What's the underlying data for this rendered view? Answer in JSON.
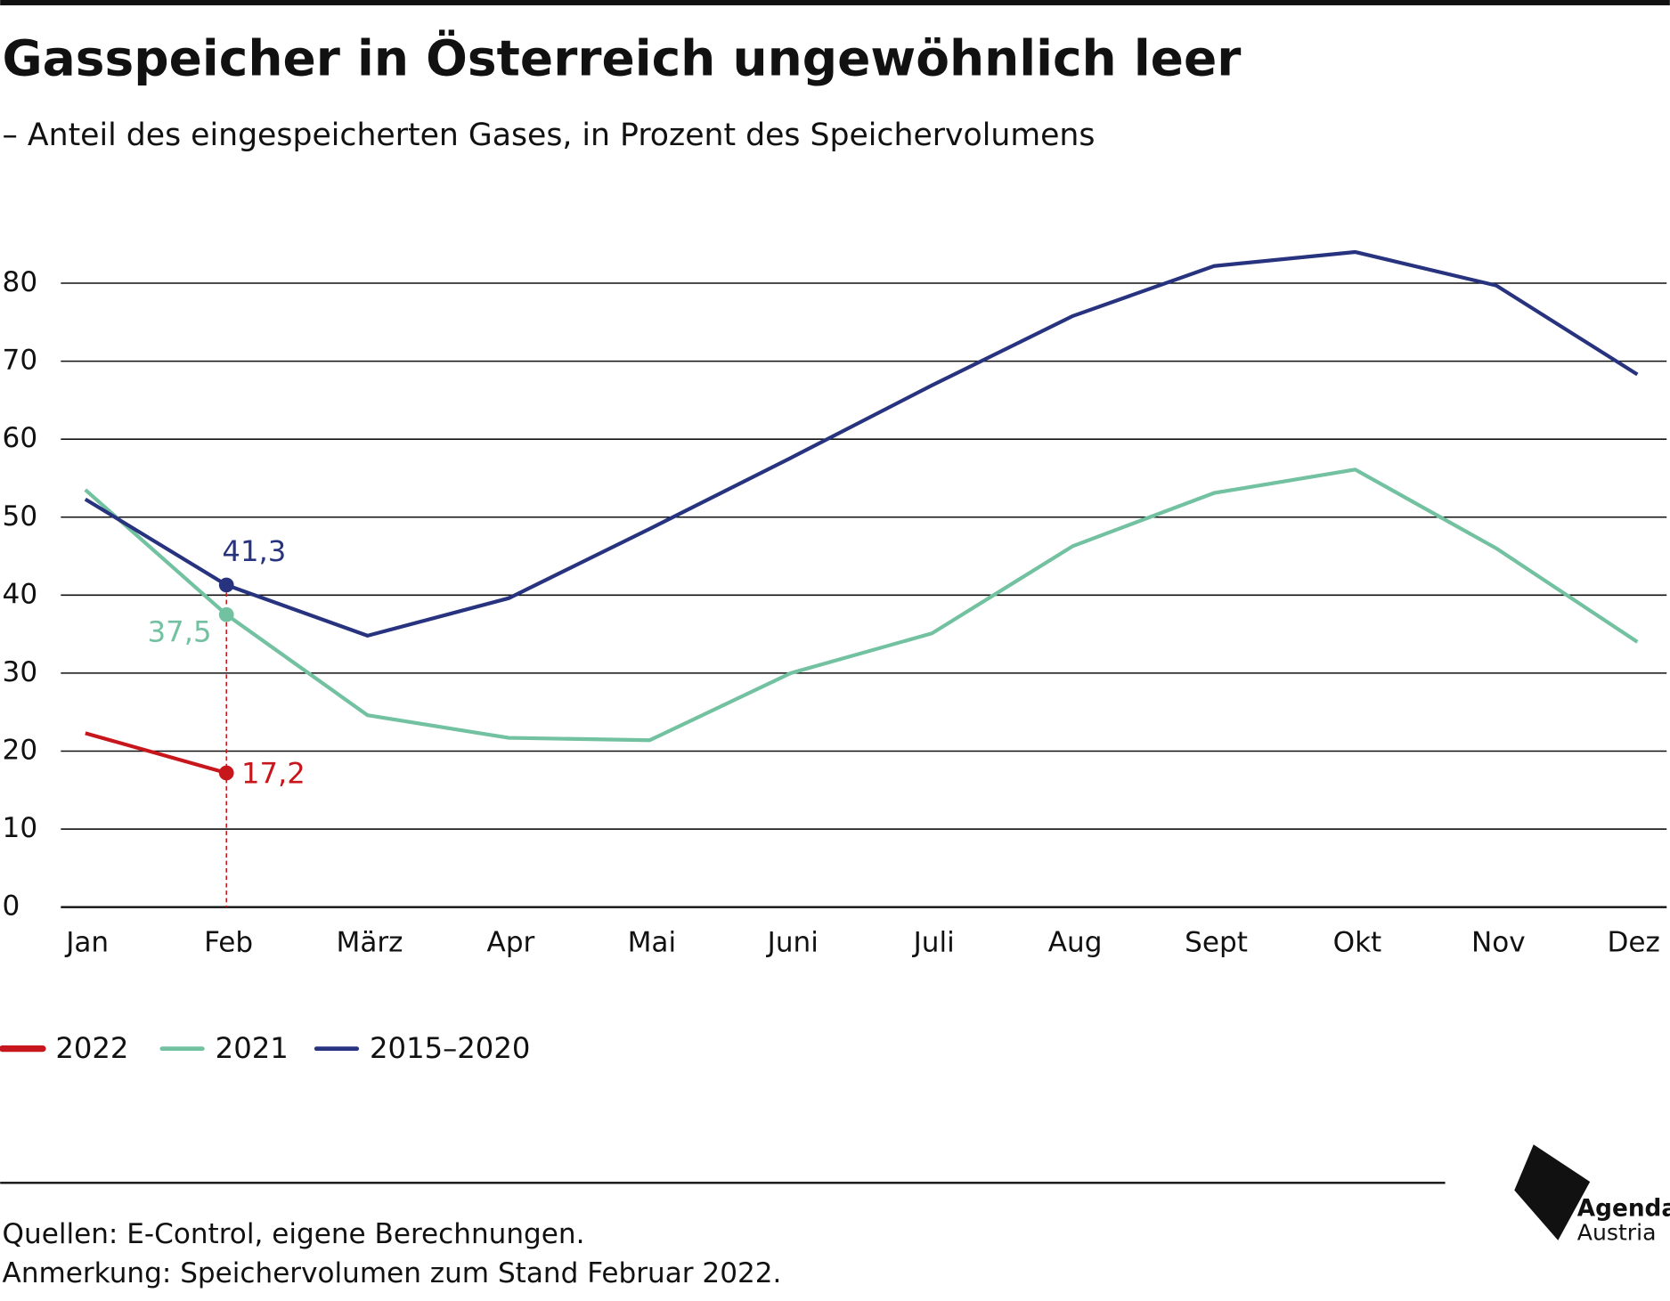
{
  "chart_data": {
    "type": "line",
    "title": "Gasspeicher in Österreich ungewöhnlich leer",
    "subtitle": "– Anteil des eingespeicherten Gases, in Prozent des Speichervolumens",
    "categories": [
      "Jan",
      "Feb",
      "März",
      "Apr",
      "Mai",
      "Juni",
      "Juli",
      "Aug",
      "Sept",
      "Okt",
      "Nov",
      "Dez"
    ],
    "series": [
      {
        "name": "2022",
        "color": "#c8161d",
        "values": [
          22.3,
          17.2,
          null,
          null,
          null,
          null,
          null,
          null,
          null,
          null,
          null,
          null
        ],
        "value_labels": [
          null,
          "17,2",
          null,
          null,
          null,
          null,
          null,
          null,
          null,
          null,
          null,
          null
        ]
      },
      {
        "name": "2021",
        "color": "#72c1a0",
        "values": [
          53.5,
          37.5,
          24.6,
          21.7,
          21.4,
          30.0,
          35.1,
          46.3,
          53.1,
          56.1,
          46.0,
          34.0
        ],
        "value_labels": [
          null,
          "37,5",
          null,
          null,
          null,
          null,
          null,
          null,
          null,
          null,
          null,
          null
        ]
      },
      {
        "name": "2015–2020",
        "color": "#27337f",
        "values": [
          52.3,
          41.3,
          34.8,
          39.6,
          48.5,
          57.6,
          66.9,
          75.8,
          82.2,
          84.0,
          79.7,
          68.3
        ],
        "value_labels": [
          null,
          "41,3",
          null,
          null,
          null,
          null,
          null,
          null,
          null,
          null,
          null,
          null
        ]
      }
    ],
    "ylim": [
      0,
      90
    ],
    "yticks": [
      0,
      10,
      20,
      30,
      40,
      50,
      60,
      70,
      80
    ],
    "grid": true,
    "legend": "bottom-left",
    "notes": [
      "Quellen: E-Control, eigene Berechnungen.",
      "Anmerkung: Speichervolumen zum Stand Februar 2022."
    ],
    "logo": [
      "Agenda",
      "Austria"
    ]
  }
}
